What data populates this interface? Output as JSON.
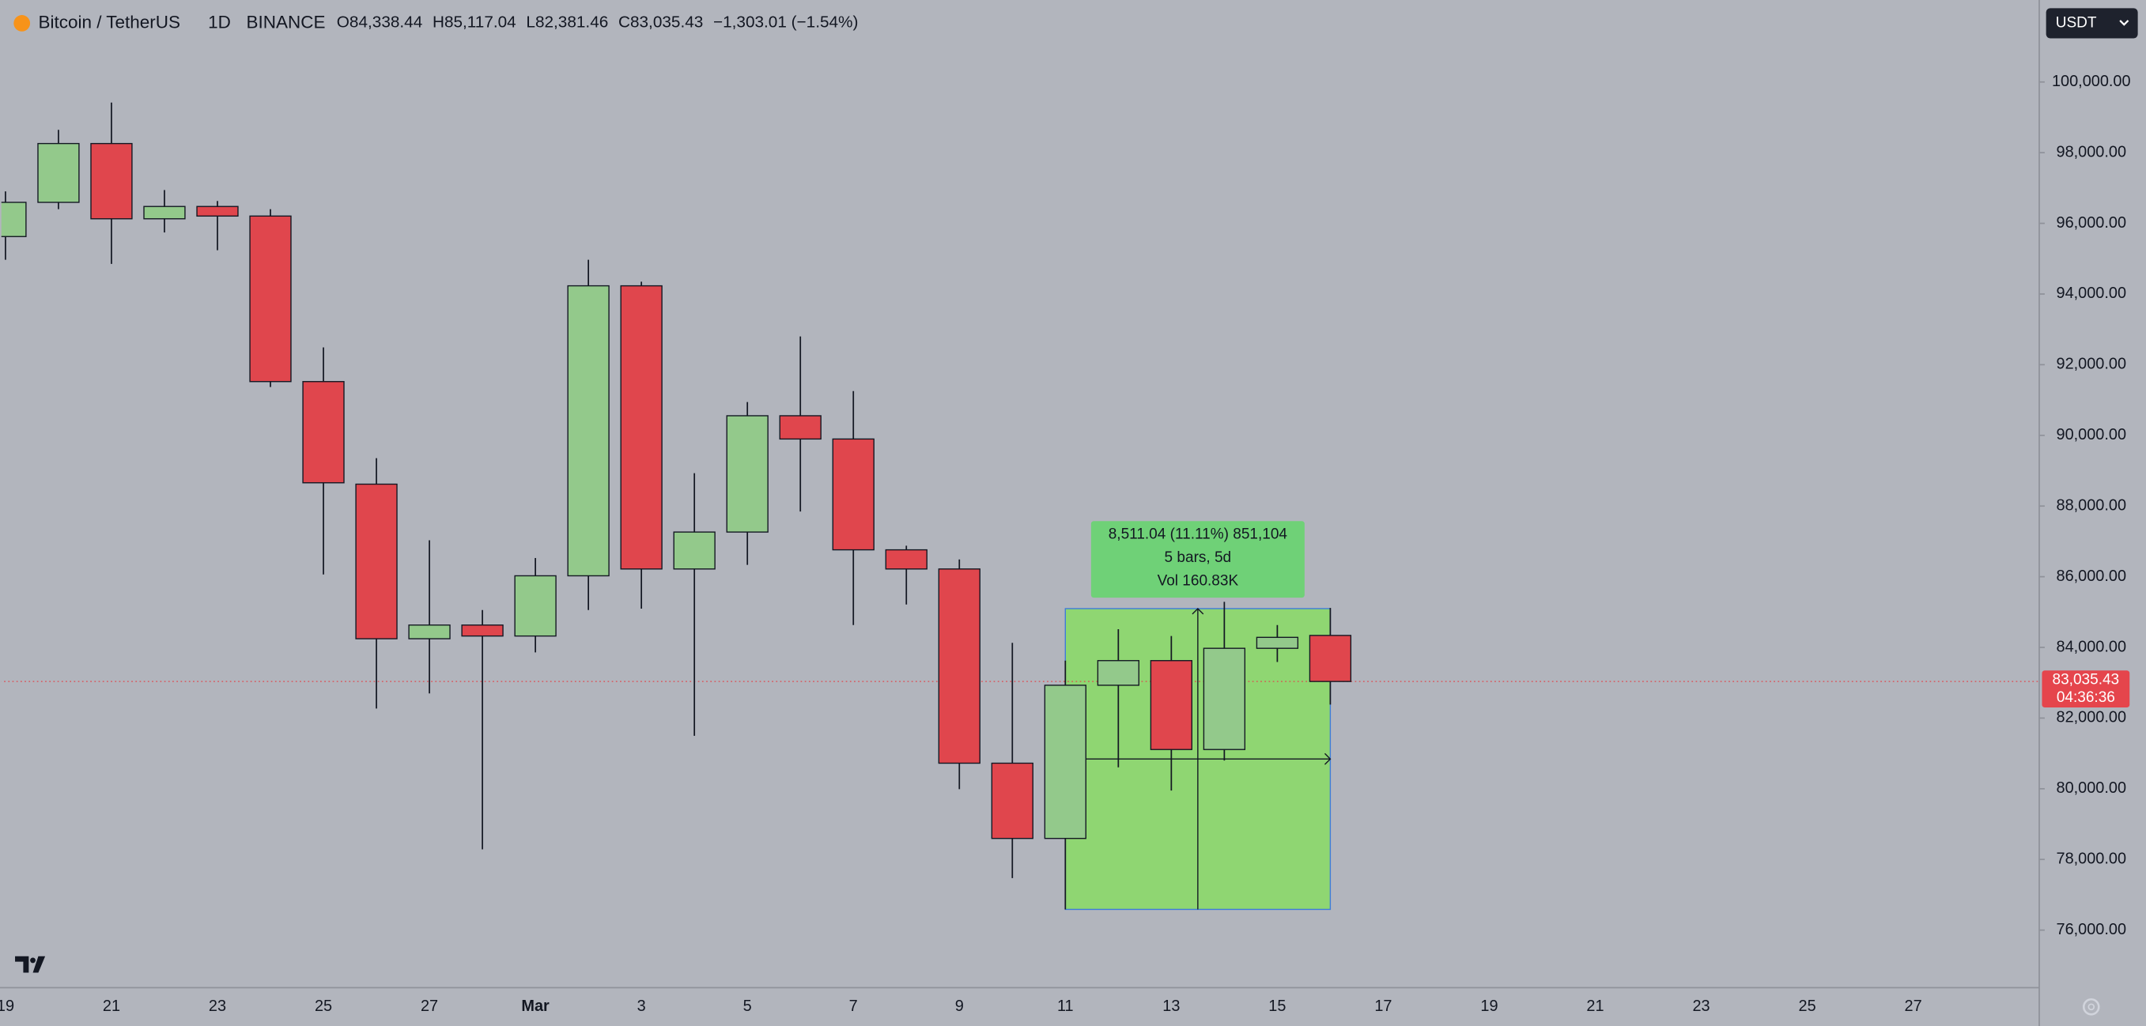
{
  "header": {
    "symbol": "Bitcoin / TetherUS",
    "interval": "1D",
    "exchange": "BINANCE",
    "ohlc": [
      {
        "label": "O",
        "value": "84,338.44"
      },
      {
        "label": "H",
        "value": "85,117.04"
      },
      {
        "label": "L",
        "value": "82,381.46"
      },
      {
        "label": "C",
        "value": "83,035.43"
      }
    ],
    "change": "−1,303.01 (−1.54%)",
    "currency": "USDT"
  },
  "chart_data": {
    "type": "candlestick",
    "categories": [
      "19",
      null,
      "21",
      null,
      "23",
      null,
      "25",
      null,
      "27",
      null,
      "Mar",
      null,
      "3",
      null,
      "5",
      null,
      "7",
      null,
      "9",
      null,
      "11",
      null,
      "13",
      null,
      "15",
      null,
      "17",
      null,
      "19",
      null,
      "21",
      null,
      "23",
      null,
      "25",
      null,
      "27"
    ],
    "open": [
      95626,
      96594,
      98258,
      96129,
      96477,
      96206,
      91522,
      88619,
      84245,
      84632,
      84322,
      86026,
      94232,
      86219,
      87264,
      90555,
      89897,
      86761,
      86219,
      80723,
      78594,
      82929,
      83626,
      81110,
      83974,
      84338.44,
      null,
      null,
      null,
      null,
      null,
      null,
      null,
      null,
      null,
      null,
      null
    ],
    "high": [
      96903,
      98645,
      99419,
      96942,
      96632,
      96400,
      92490,
      89355,
      87032,
      85058,
      86529,
      94968,
      94348,
      88929,
      90942,
      92800,
      91252,
      86877,
      86490,
      84129,
      83626,
      84516,
      84322,
      85290,
      84632,
      85117.04,
      null,
      null,
      null,
      null,
      null,
      null,
      null,
      null,
      null,
      null,
      null
    ],
    "low": [
      94968,
      96400,
      94852,
      95742,
      95239,
      91368,
      86064,
      82271,
      82697,
      78284,
      83858,
      85058,
      85097,
      81497,
      86335,
      87845,
      84632,
      85213,
      79987,
      77471,
      76586,
      80606,
      79948,
      80800,
      83587,
      82381.46,
      null,
      null,
      null,
      null,
      null,
      null,
      null,
      null,
      null,
      null,
      null
    ],
    "close": [
      96594,
      98258,
      96129,
      96477,
      96206,
      91522,
      88658,
      84245,
      84632,
      84322,
      86026,
      94232,
      86219,
      87264,
      90555,
      89897,
      86761,
      86219,
      80723,
      78594,
      82929,
      83626,
      81110,
      83974,
      84284,
      83035.43,
      null,
      null,
      null,
      null,
      null,
      null,
      null,
      null,
      null,
      null,
      null
    ],
    "up_color": "#93c98b",
    "down_color": "#e0464d",
    "ylim": [
      74370,
      102320
    ],
    "yticks": [
      {
        "value": 76000,
        "label": "76,000.00"
      },
      {
        "value": 78000,
        "label": "78,000.00"
      },
      {
        "value": 80000,
        "label": "80,000.00"
      },
      {
        "value": 82000,
        "label": "82,000.00"
      },
      {
        "value": 84000,
        "label": "84,000.00"
      },
      {
        "value": 86000,
        "label": "86,000.00"
      },
      {
        "value": 88000,
        "label": "88,000.00"
      },
      {
        "value": 90000,
        "label": "90,000.00"
      },
      {
        "value": 92000,
        "label": "92,000.00"
      },
      {
        "value": 94000,
        "label": "94,000.00"
      },
      {
        "value": 96000,
        "label": "96,000.00"
      },
      {
        "value": 98000,
        "label": "98,000.00"
      },
      {
        "value": 100000,
        "label": "100,000.00"
      }
    ],
    "last_price": {
      "value": 83035.43,
      "label": "83,035.43",
      "countdown": "04:36:36"
    },
    "measure": {
      "high": 85097,
      "low": 76586,
      "lines": [
        "8,511.04 (11.11%) 851,104",
        "5 bars, 5d",
        "Vol 160.83K"
      ]
    }
  }
}
